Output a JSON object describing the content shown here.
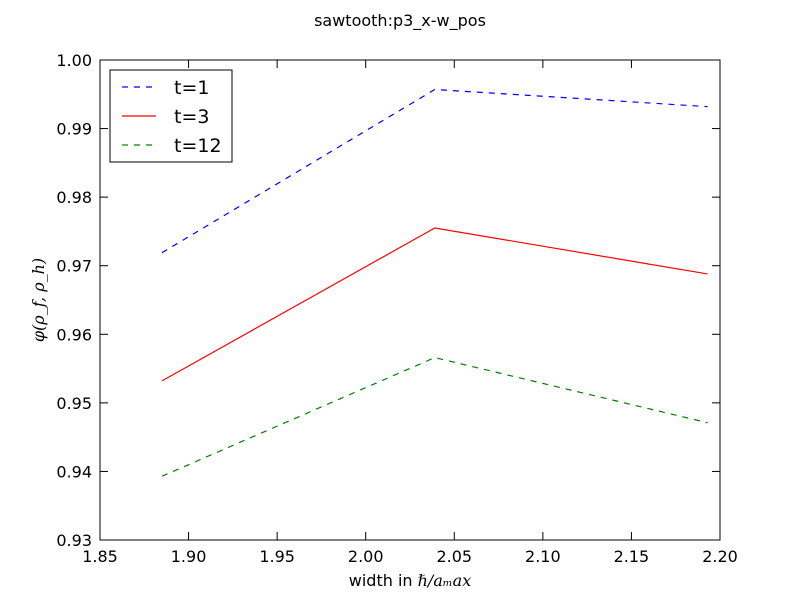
{
  "chart_data": {
    "type": "line",
    "title": "sawtooth:p3_x-w_pos",
    "xlabel_prefix": "width in ",
    "xlabel_math": "ℏ/aₘax",
    "ylabel": "φ(ρ_f, ρ_h)",
    "xlim": [
      1.85,
      2.2
    ],
    "ylim": [
      0.93,
      1.0
    ],
    "x": [
      1.885,
      2.039,
      2.193
    ],
    "xticks": [
      "1.85",
      "1.90",
      "1.95",
      "2.00",
      "2.05",
      "2.10",
      "2.15",
      "2.20"
    ],
    "yticks": [
      "0.93",
      "0.94",
      "0.95",
      "0.96",
      "0.97",
      "0.98",
      "0.99",
      "1.00"
    ],
    "legend_position": "top-left",
    "grid": false,
    "series": [
      {
        "name": "t=1",
        "values": [
          0.9719,
          0.9957,
          0.9932
        ],
        "color": "#0000ff",
        "dash": "dashed"
      },
      {
        "name": "t=3",
        "values": [
          0.9532,
          0.9755,
          0.9688
        ],
        "color": "#ff0000",
        "dash": "solid"
      },
      {
        "name": "t=12",
        "values": [
          0.9393,
          0.9566,
          0.9471
        ],
        "color": "#008000",
        "dash": "dashed"
      }
    ]
  }
}
